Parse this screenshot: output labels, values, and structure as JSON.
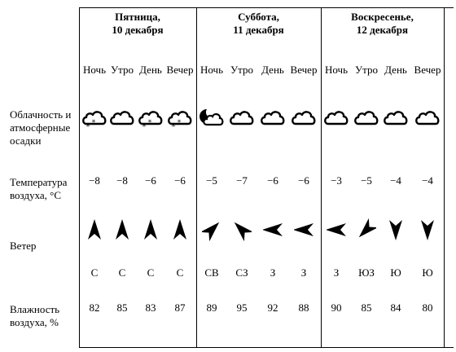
{
  "row_labels": {
    "clouds": "Облачность и атмосферные осадки",
    "temperature": "Температура воздуха, °C",
    "wind": "Ветер",
    "humidity": "Влажность воздуха, %"
  },
  "days": [
    {
      "weekday": "Пятница,",
      "date": "10 декабря",
      "periods": [
        {
          "name": "Ночь",
          "icon": "cloud-snow-icon",
          "temp": "−8",
          "wind_dir": "С",
          "wind_angle": 180,
          "humidity": "82"
        },
        {
          "name": "Утро",
          "icon": "cloud-icon",
          "temp": "−8",
          "wind_dir": "С",
          "wind_angle": 180,
          "humidity": "85"
        },
        {
          "name": "День",
          "icon": "cloud-snow-icon",
          "temp": "−6",
          "wind_dir": "С",
          "wind_angle": 180,
          "humidity": "83"
        },
        {
          "name": "Вечер",
          "icon": "cloud-snow-icon",
          "temp": "−6",
          "wind_dir": "С",
          "wind_angle": 180,
          "humidity": "87"
        }
      ]
    },
    {
      "weekday": "Суббота,",
      "date": "11 декабря",
      "periods": [
        {
          "name": "Ночь",
          "icon": "moon-cloud-icon",
          "temp": "−5",
          "wind_dir": "СВ",
          "wind_angle": 225,
          "humidity": "89"
        },
        {
          "name": "Утро",
          "icon": "cloud-icon",
          "temp": "−7",
          "wind_dir": "СЗ",
          "wind_angle": 135,
          "humidity": "95"
        },
        {
          "name": "День",
          "icon": "cloud-icon",
          "temp": "−6",
          "wind_dir": "З",
          "wind_angle": 90,
          "humidity": "92"
        },
        {
          "name": "Вечер",
          "icon": "cloud-icon",
          "temp": "−6",
          "wind_dir": "З",
          "wind_angle": 90,
          "humidity": "88"
        }
      ]
    },
    {
      "weekday": "Воскресенье,",
      "date": "12 декабря",
      "periods": [
        {
          "name": "Ночь",
          "icon": "cloud-icon",
          "temp": "−3",
          "wind_dir": "З",
          "wind_angle": 90,
          "humidity": "90"
        },
        {
          "name": "Утро",
          "icon": "cloud-icon",
          "temp": "−5",
          "wind_dir": "ЮЗ",
          "wind_angle": 45,
          "humidity": "85"
        },
        {
          "name": "День",
          "icon": "cloud-icon",
          "temp": "−4",
          "wind_dir": "Ю",
          "wind_angle": 0,
          "humidity": "84"
        },
        {
          "name": "Вечер",
          "icon": "cloud-icon",
          "temp": "−4",
          "wind_dir": "Ю",
          "wind_angle": 0,
          "humidity": "80"
        }
      ]
    }
  ]
}
